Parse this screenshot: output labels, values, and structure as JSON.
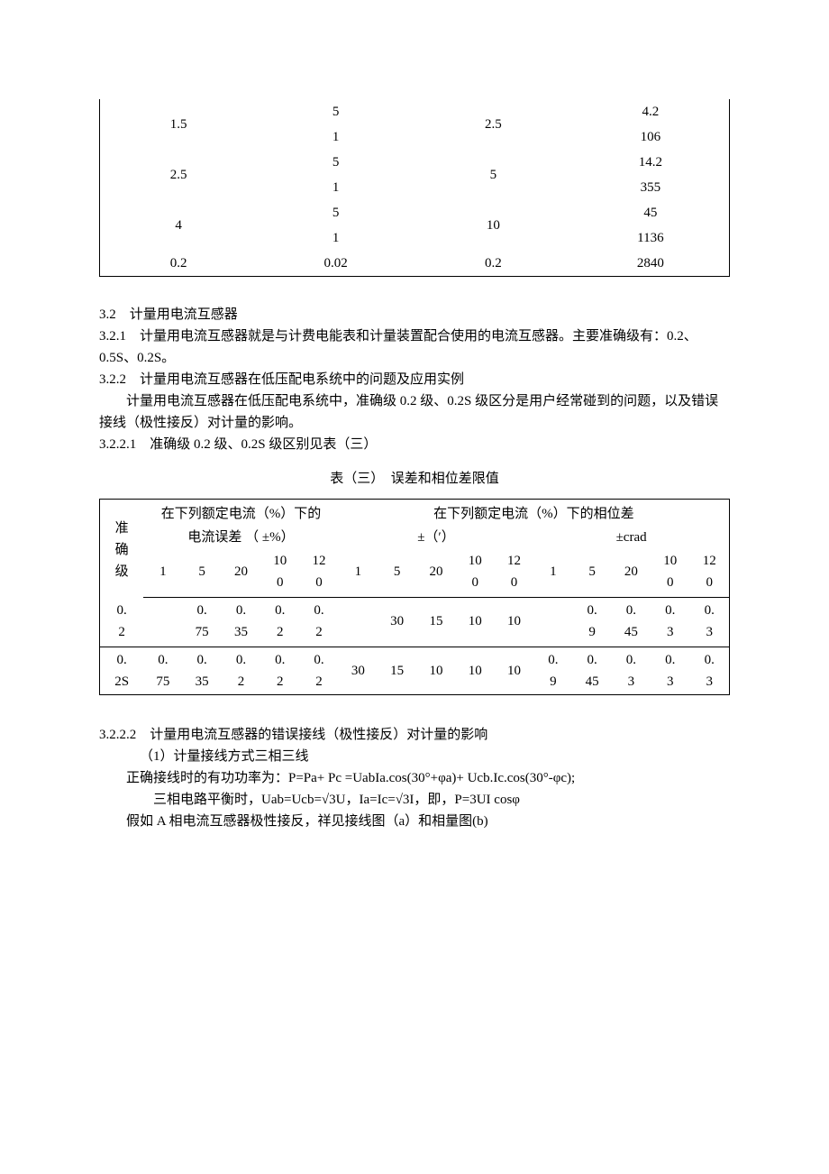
{
  "table1": {
    "col_widths_pct": [
      25,
      25,
      25,
      25
    ],
    "rows": [
      {
        "c1": "1.5",
        "c2a": "5",
        "c2b": "1",
        "c3": "2.5",
        "c4a": "4.2",
        "c4b": "106"
      },
      {
        "c1": "2.5",
        "c2a": "5",
        "c2b": "1",
        "c3": "5",
        "c4a": "14.2",
        "c4b": "355"
      },
      {
        "c1": "4",
        "c2a": "5",
        "c2b": "1",
        "c3": "10",
        "c4a": "45",
        "c4b": "1136"
      },
      {
        "c1": "0.2",
        "c2": "0.02",
        "c3": "0.2",
        "c4": "2840",
        "single": true
      }
    ]
  },
  "body": {
    "h32": "3.2　计量用电流互感器",
    "p321": "3.2.1　计量用电流互感器就是与计费电能表和计量装置配合使用的电流互感器。主要准确级有：0.2、0.5S、0.2S。",
    "p322": "3.2.2　计量用电流互感器在低压配电系统中的问题及应用实例",
    "p322body": "　　计量用电流互感器在低压配电系统中，准确级 0.2 级、0.2S 级区分是用户经常碰到的问题，以及错误接线（极性接反）对计量的影响。",
    "p3221": "3.2.2.1　准确级 0.2 级、0.2S 级区别见表（三）",
    "table3_caption": "表（三）　误差和相位差限值"
  },
  "table3": {
    "header_top": {
      "col0_rowspan_label": "准\n确\n级",
      "group1": "在下列额定电流（%）下的",
      "group1_sub": "电流误差 （ ±%）",
      "group2": "在下列额定电流（%）下的相位差",
      "group2_sub1": "±（′）",
      "group2_sub2": "±crad"
    },
    "cols_group1": [
      "1",
      "5",
      "20",
      "100",
      "120"
    ],
    "cols_group2a": [
      "1",
      "5",
      "20",
      "100",
      "120"
    ],
    "cols_group2b": [
      "1",
      "5",
      "20",
      "100",
      "120"
    ],
    "rows": [
      {
        "label": "0.2",
        "g1": [
          "",
          "0.75",
          "0.35",
          "0.2",
          "0.2"
        ],
        "g2a": [
          "",
          "30",
          "15",
          "10",
          "10"
        ],
        "g2b": [
          "",
          "0.9",
          "0.45",
          "0.3",
          "0.3"
        ]
      },
      {
        "label": "0.2S",
        "g1": [
          "0.75",
          "0.35",
          "0.2",
          "0.2",
          "0.2"
        ],
        "g2a": [
          "30",
          "15",
          "10",
          "10",
          "10"
        ],
        "g2b": [
          "0.9",
          "0.45",
          "0.3",
          "0.3",
          "0.3"
        ]
      }
    ],
    "colors": {
      "background": "#ffffff",
      "border": "#000000",
      "text": "#000000"
    },
    "font_size_pt": 12
  },
  "footer": {
    "p3222": "3.2.2.2　计量用电流互感器的错误接线（极性接反）对计量的影响",
    "p1": "（1）计量接线方式三相三线",
    "p2": "正确接线时的有功功率为：P=Pa+ Pc =UabIa.cos(30°+φa)+ Ucb.Ic.cos(30°-φc);",
    "p3": "三相电路平衡时，Uab=Ucb=√3U，Ia=Ic=√3I，即，P=3UI cosφ",
    "p4": "假如 A 相电流互感器极性接反，祥见接线图（a）和相量图(b)"
  }
}
